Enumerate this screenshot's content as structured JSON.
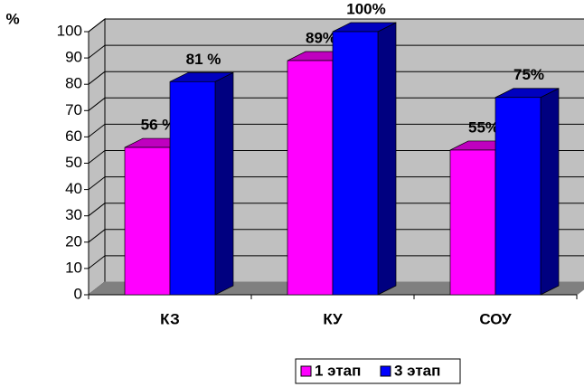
{
  "chart_data": {
    "type": "bar3d",
    "y_label": "%",
    "categories": [
      "КЗ",
      "КУ",
      "СОУ"
    ],
    "series": [
      {
        "name": "1 этап",
        "color": "#ff00ff",
        "values": [
          56,
          89,
          55
        ],
        "value_labels": [
          "56 %",
          "89%",
          "55%"
        ]
      },
      {
        "name": "3 этап",
        "color": "#0000ff",
        "values": [
          81,
          100,
          75
        ],
        "value_labels": [
          "81 %",
          "100%",
          "75%"
        ]
      }
    ],
    "ylim": [
      0,
      100
    ],
    "yticks": [
      0,
      10,
      20,
      30,
      40,
      50,
      60,
      70,
      80,
      90,
      100
    ],
    "grid": true,
    "legend": "bottom"
  }
}
